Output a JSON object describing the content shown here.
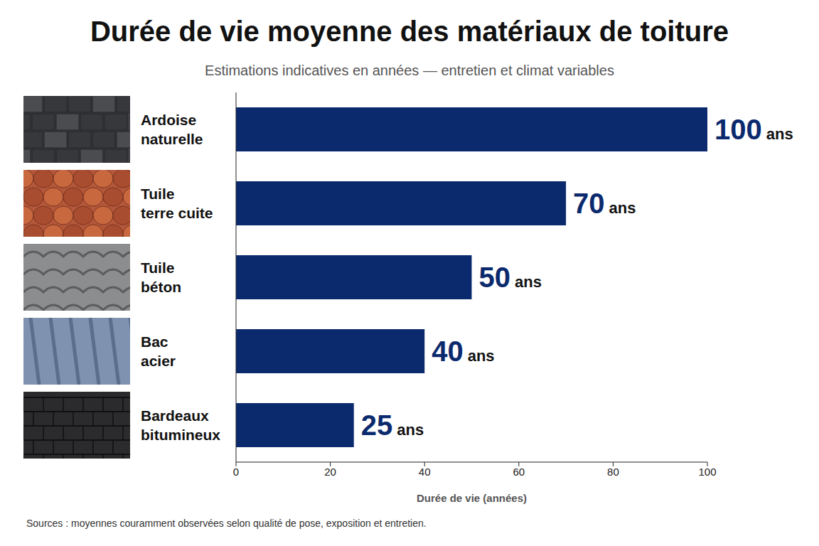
{
  "chart_data": {
    "type": "bar",
    "orientation": "horizontal",
    "title": "Durée de vie moyenne des matériaux de toiture",
    "subtitle": "Estimations indicatives en années — entretien et climat variables",
    "categories": [
      "Ardoise naturelle",
      "Tuile terre cuite",
      "Tuile béton",
      "Bac acier",
      "Bardeaux bitumineux"
    ],
    "values": [
      100,
      70,
      50,
      40,
      25
    ],
    "value_labels": [
      "100 ans",
      "70 ans",
      "50 ans",
      "40 ans",
      "25 ans"
    ],
    "color": "#0b2a6e",
    "xlim": [
      0,
      100
    ],
    "xticks": [
      0,
      20,
      40,
      60,
      80,
      100
    ],
    "xlabel": "Durée de vie (années)",
    "grid": false,
    "data_labels": true,
    "source": "Sources :  moyennes couramment observées selon qualité de pose, exposition et entretien."
  }
}
